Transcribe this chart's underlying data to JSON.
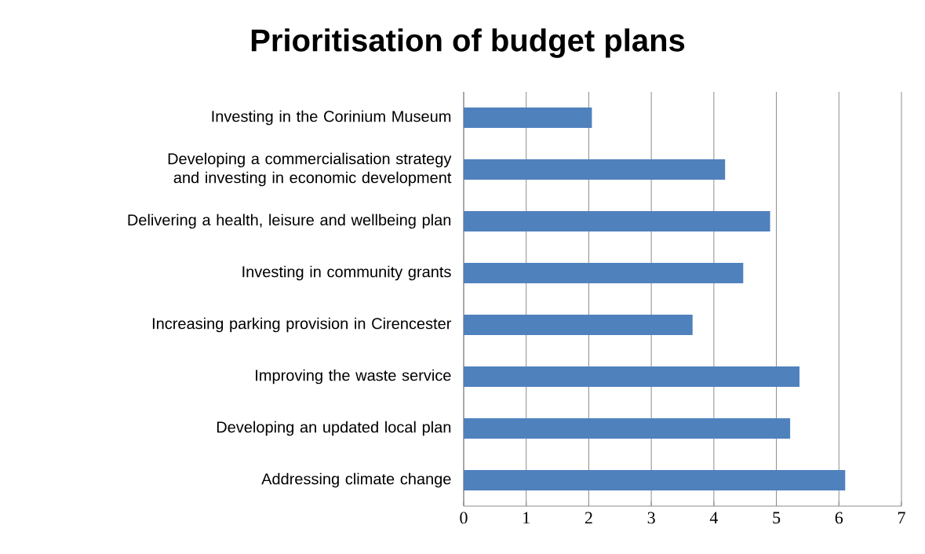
{
  "chart_data": {
    "type": "bar",
    "orientation": "horizontal",
    "title": "Prioritisation of budget plans",
    "categories": [
      "Investing in the Corinium Museum",
      "Developing a commercialisation strategy and investing in economic development",
      "Delivering a health, leisure and wellbeing plan",
      "Investing in community grants",
      "Increasing parking provision in Cirencester",
      "Improving the waste service",
      "Developing an updated local plan",
      "Addressing climate change"
    ],
    "values": [
      2.05,
      4.18,
      4.9,
      4.47,
      3.66,
      5.37,
      5.22,
      6.1
    ],
    "color": "#4f81bd",
    "xlim": [
      0,
      7
    ],
    "xticks": [
      0,
      1,
      2,
      3,
      4,
      5,
      6,
      7
    ],
    "grid": "x"
  }
}
